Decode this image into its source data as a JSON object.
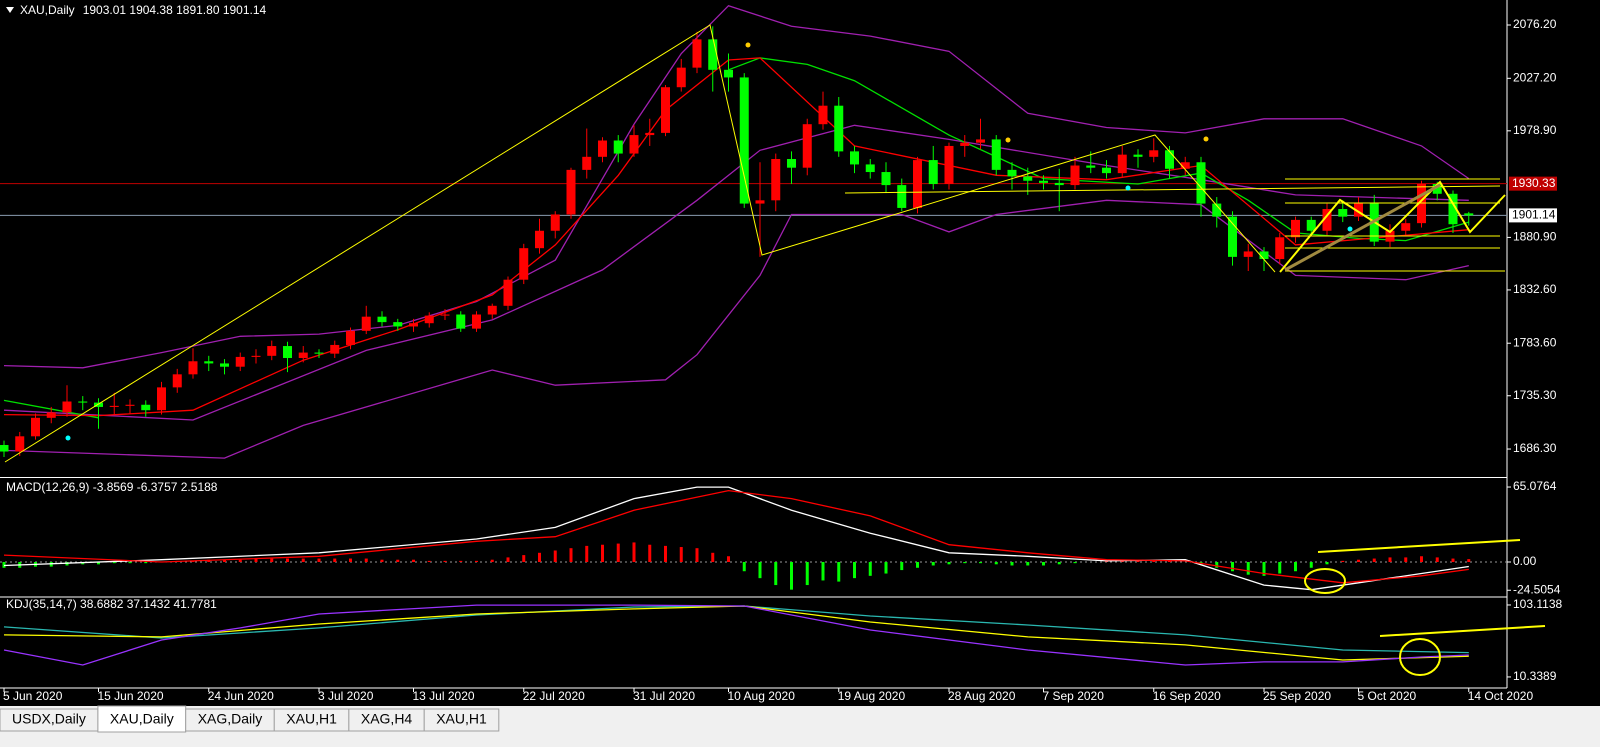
{
  "header": {
    "title": "XAU,Daily",
    "ohlc": "1903.01 1904.38 1891.80 1901.14"
  },
  "chart_data": [
    {
      "type": "candlestick",
      "categories": [
        "5 Jun 2020",
        null,
        null,
        null,
        null,
        null,
        "15 Jun 2020",
        null,
        null,
        null,
        null,
        null,
        null,
        "24 Jun 2020",
        null,
        null,
        null,
        null,
        null,
        null,
        "3 Jul 2020",
        null,
        null,
        null,
        null,
        null,
        "13 Jul 2020",
        null,
        null,
        null,
        null,
        null,
        null,
        "22 Jul 2020",
        null,
        null,
        null,
        null,
        null,
        null,
        "31 Jul 2020",
        null,
        null,
        null,
        null,
        null,
        "10 Aug 2020",
        null,
        null,
        null,
        null,
        null,
        null,
        "19 Aug 2020",
        null,
        null,
        null,
        null,
        null,
        null,
        "28 Aug 2020",
        null,
        null,
        null,
        null,
        null,
        "7 Sep 2020",
        null,
        null,
        null,
        null,
        null,
        null,
        "16 Sep 2020",
        null,
        null,
        null,
        null,
        null,
        null,
        "25 Sep 2020",
        null,
        null,
        null,
        null,
        null,
        "5 Oct 2020",
        null,
        null,
        null,
        null,
        null,
        null,
        "14 Oct 2020"
      ],
      "candles": [
        [
          1690,
          1694,
          1679,
          1684
        ],
        [
          1684,
          1702,
          1680,
          1698
        ],
        [
          1698,
          1719,
          1695,
          1715
        ],
        [
          1715,
          1725,
          1710,
          1720
        ],
        [
          1720,
          1745,
          1716,
          1730
        ],
        [
          1730,
          1735,
          1722,
          1729
        ],
        [
          1729,
          1733,
          1705,
          1725
        ],
        [
          1725,
          1738,
          1718,
          1726
        ],
        [
          1726,
          1732,
          1719,
          1727
        ],
        [
          1727,
          1731,
          1716,
          1722
        ],
        [
          1722,
          1748,
          1718,
          1743
        ],
        [
          1743,
          1760,
          1738,
          1755
        ],
        [
          1755,
          1779,
          1751,
          1767
        ],
        [
          1767,
          1772,
          1758,
          1765
        ],
        [
          1765,
          1769,
          1755,
          1762
        ],
        [
          1762,
          1775,
          1758,
          1771
        ],
        [
          1771,
          1778,
          1765,
          1772
        ],
        [
          1772,
          1786,
          1768,
          1781
        ],
        [
          1781,
          1785,
          1757,
          1770
        ],
        [
          1770,
          1781,
          1766,
          1775
        ],
        [
          1775,
          1778,
          1770,
          1774
        ],
        [
          1774,
          1786,
          1770,
          1782
        ],
        [
          1782,
          1798,
          1778,
          1795
        ],
        [
          1795,
          1818,
          1792,
          1808
        ],
        [
          1808,
          1813,
          1799,
          1803
        ],
        [
          1803,
          1806,
          1795,
          1799
        ],
        [
          1799,
          1806,
          1794,
          1802
        ],
        [
          1802,
          1812,
          1798,
          1809
        ],
        [
          1809,
          1815,
          1805,
          1810
        ],
        [
          1810,
          1813,
          1794,
          1797
        ],
        [
          1797,
          1813,
          1794,
          1810
        ],
        [
          1810,
          1820,
          1806,
          1818
        ],
        [
          1818,
          1845,
          1814,
          1842
        ],
        [
          1842,
          1875,
          1838,
          1871
        ],
        [
          1871,
          1898,
          1866,
          1887
        ],
        [
          1887,
          1905,
          1880,
          1902
        ],
        [
          1902,
          1945,
          1898,
          1943
        ],
        [
          1943,
          1981,
          1935,
          1955
        ],
        [
          1955,
          1973,
          1950,
          1970
        ],
        [
          1970,
          1975,
          1950,
          1958
        ],
        [
          1958,
          1984,
          1955,
          1975
        ],
        [
          1975,
          1990,
          1965,
          1977
        ],
        [
          1977,
          2021,
          1974,
          2019
        ],
        [
          2019,
          2045,
          2015,
          2037
        ],
        [
          2037,
          2070,
          2032,
          2063
        ],
        [
          2063,
          2075,
          2015,
          2035
        ],
        [
          2035,
          2050,
          2015,
          2028
        ],
        [
          2028,
          2032,
          1908,
          1912
        ],
        [
          1912,
          1950,
          1863,
          1915
        ],
        [
          1915,
          1958,
          1905,
          1953
        ],
        [
          1953,
          1960,
          1930,
          1945
        ],
        [
          1945,
          1990,
          1938,
          1985
        ],
        [
          1985,
          2015,
          1980,
          2002
        ],
        [
          2002,
          2010,
          1955,
          1960
        ],
        [
          1960,
          1965,
          1940,
          1948
        ],
        [
          1948,
          1953,
          1935,
          1941
        ],
        [
          1941,
          1950,
          1922,
          1929
        ],
        [
          1929,
          1935,
          1905,
          1908
        ],
        [
          1908,
          1955,
          1903,
          1952
        ],
        [
          1952,
          1965,
          1925,
          1930
        ],
        [
          1930,
          1968,
          1925,
          1965
        ],
        [
          1965,
          1975,
          1955,
          1968
        ],
        [
          1968,
          1990,
          1962,
          1971
        ],
        [
          1971,
          1975,
          1938,
          1943
        ],
        [
          1943,
          1950,
          1925,
          1937
        ],
        [
          1937,
          1945,
          1920,
          1933
        ],
        [
          1933,
          1938,
          1925,
          1931
        ],
        [
          1931,
          1944,
          1905,
          1929
        ],
        [
          1929,
          1955,
          1925,
          1947
        ],
        [
          1947,
          1960,
          1940,
          1945
        ],
        [
          1945,
          1952,
          1935,
          1940
        ],
        [
          1940,
          1965,
          1936,
          1957
        ],
        [
          1957,
          1962,
          1945,
          1955
        ],
        [
          1955,
          1972,
          1950,
          1961
        ],
        [
          1961,
          1965,
          1935,
          1944
        ],
        [
          1944,
          1955,
          1938,
          1950
        ],
        [
          1950,
          1955,
          1900,
          1912
        ],
        [
          1912,
          1918,
          1890,
          1900
        ],
        [
          1900,
          1905,
          1855,
          1863
        ],
        [
          1863,
          1875,
          1850,
          1868
        ],
        [
          1868,
          1872,
          1850,
          1861
        ],
        [
          1861,
          1885,
          1856,
          1881
        ],
        [
          1881,
          1900,
          1876,
          1897
        ],
        [
          1897,
          1900,
          1882,
          1887
        ],
        [
          1887,
          1912,
          1883,
          1907
        ],
        [
          1907,
          1915,
          1895,
          1900
        ],
        [
          1900,
          1918,
          1896,
          1913
        ],
        [
          1913,
          1920,
          1873,
          1877
        ],
        [
          1877,
          1893,
          1872,
          1887
        ],
        [
          1887,
          1898,
          1883,
          1894
        ],
        [
          1894,
          1933,
          1890,
          1930
        ],
        [
          1930,
          1932,
          1915,
          1921
        ],
        [
          1921,
          1924,
          1885,
          1893
        ],
        [
          1903.01,
          1904.38,
          1891.8,
          1901.14
        ]
      ],
      "up_color": "#ff0000",
      "down_color": "#00ff00",
      "ylim": [
        1661.5,
        2099.2
      ],
      "yticks": [
        {
          "value": 2076.2,
          "label": "2076.20"
        },
        {
          "value": 2027.2,
          "label": "2027.20"
        },
        {
          "value": 1978.9,
          "label": "1978.90"
        },
        {
          "value": 1880.9,
          "label": "1880.90"
        },
        {
          "value": 1832.6,
          "label": "1832.60"
        },
        {
          "value": 1783.6,
          "label": "1783.60"
        },
        {
          "value": 1735.3,
          "label": "1735.30"
        },
        {
          "value": 1686.3,
          "label": "1686.30"
        }
      ],
      "price_lines": [
        {
          "value": 1930.33,
          "label": "1930.33",
          "color": "#c00000"
        },
        {
          "value": 1901.14,
          "label": "1901.14",
          "color": "#8a9bb0"
        }
      ],
      "lines": [
        {
          "color": "#a020b0",
          "x": [
            0,
            5,
            10,
            15,
            20,
            25,
            30,
            35,
            40,
            43,
            46,
            50,
            55,
            60,
            65,
            70,
            75,
            80,
            85,
            90,
            93
          ],
          "values": [
            1763,
            1761,
            1775,
            1790,
            1792,
            1800,
            1822,
            1860,
            1985,
            2050,
            2094,
            2075,
            2066,
            2052,
            1995,
            1982,
            1977,
            1990,
            1990,
            1965,
            1935
          ]
        },
        {
          "color": "#a020b0",
          "x": [
            0,
            14,
            19,
            31,
            35,
            42,
            44,
            48,
            50,
            57,
            60,
            63,
            70,
            76,
            82,
            89,
            93
          ],
          "values": [
            1685,
            1678,
            1708,
            1759,
            1745,
            1750,
            1773,
            1846,
            1902,
            1902,
            1886,
            1902,
            1915,
            1911,
            1846,
            1842,
            1855
          ]
        },
        {
          "color": "#a020b0",
          "x": [
            0,
            12,
            23,
            31,
            38,
            44,
            48,
            54,
            60,
            70,
            76,
            82,
            93
          ],
          "values": [
            1722,
            1713,
            1777,
            1805,
            1851,
            1915,
            1961,
            1984,
            1971,
            1947,
            1934,
            1920,
            1915
          ]
        },
        {
          "color": "#00e000",
          "x": [
            0,
            6,
            20,
            46,
            48,
            51,
            54,
            60,
            66,
            72,
            76,
            79,
            82,
            86,
            89,
            93
          ],
          "values": [
            1731,
            1715,
            null,
            2035,
            2046,
            2040,
            2025,
            1975,
            1935,
            1930,
            1940,
            1915,
            1885,
            1880,
            1878,
            1895
          ]
        },
        {
          "color": "#ff0000",
          "x": [
            0,
            6,
            12,
            19,
            25,
            31,
            35,
            39,
            42,
            46,
            48,
            54,
            63,
            70,
            76,
            82,
            93
          ],
          "values": [
            1718,
            1717,
            1722,
            1768,
            1796,
            1828,
            1874,
            1938,
            1998,
            2044,
            2046,
            1965,
            1938,
            1934,
            1947,
            1874,
            1888
          ]
        }
      ]
    },
    {
      "type": "macd",
      "title": "MACD(12,26,9) -3.8569 -6.3757 2.5188",
      "histogram": [
        -5,
        -5,
        -4,
        -4,
        -3,
        -2,
        -2,
        -1,
        -1,
        -1,
        0,
        1,
        1,
        2,
        2,
        2,
        3,
        3,
        3,
        3,
        3,
        3,
        3,
        3,
        2,
        2,
        2,
        1,
        1,
        1,
        1,
        2,
        4,
        6,
        8,
        10,
        12,
        14,
        15,
        16,
        17,
        15,
        14,
        13,
        12,
        8,
        5,
        -8,
        -14,
        -20,
        -24,
        -20,
        -16,
        -17,
        -14,
        -12,
        -10,
        -7,
        -5,
        -3,
        -2,
        -1,
        -1,
        -2,
        -3,
        -3,
        -3,
        -2,
        -1,
        0,
        1,
        1,
        1,
        1,
        1,
        0,
        -2,
        -5,
        -8,
        -11,
        -12,
        -10,
        -8,
        -5,
        -2,
        1,
        2,
        3,
        4,
        4,
        5,
        4,
        3,
        2.5188
      ],
      "pos_color": "#ff0000",
      "neg_color": "#00ff00",
      "ylim": [
        -29.5,
        72.05
      ],
      "yticks": [
        65.0764,
        {
          "value": 0,
          "label": "0.00"
        },
        -24.5054
      ],
      "lines": [
        {
          "color": "#ffffff",
          "x": [
            0,
            10,
            20,
            30,
            35,
            40,
            44,
            46,
            50,
            55,
            60,
            65,
            70,
            75,
            80,
            83,
            86,
            90,
            93
          ],
          "values": [
            -3,
            2,
            8,
            20,
            30,
            55,
            65,
            65,
            45,
            25,
            8,
            5,
            1,
            2,
            -20,
            -24,
            -18,
            -10,
            -3.8569
          ]
        },
        {
          "color": "#ff0000",
          "x": [
            0,
            10,
            20,
            30,
            35,
            40,
            46,
            50,
            55,
            60,
            65,
            70,
            75,
            80,
            85,
            90,
            93
          ],
          "values": [
            6,
            0,
            5,
            18,
            22,
            45,
            62,
            55,
            40,
            15,
            8,
            2,
            1,
            -10,
            -18,
            -12,
            -6.3757
          ]
        }
      ]
    },
    {
      "type": "lines",
      "title": "KDJ(35,14,7) 38.6882 37.1432 41.7781",
      "ylim": [
        -3.9,
        112.1
      ],
      "yticks": [
        103.1138,
        10.3389
      ],
      "lines": [
        {
          "color": "#2ab7b0",
          "x": [
            0,
            10,
            20,
            30,
            40,
            47,
            55,
            65,
            75,
            85,
            93
          ],
          "values": [
            74.8,
            60.6,
            73.5,
            90.2,
            100.5,
            101.8,
            88.9,
            77.3,
            64.5,
            45.1,
            41.7781
          ]
        },
        {
          "color": "#ffff00",
          "x": [
            0,
            10,
            20,
            30,
            40,
            47,
            55,
            65,
            75,
            85,
            93
          ],
          "values": [
            64.5,
            61.9,
            78.6,
            91.5,
            98,
            101.8,
            81.2,
            61.9,
            51.6,
            32.2,
            37.1432
          ]
        },
        {
          "color": "#9933ff",
          "x": [
            0,
            5,
            10,
            15,
            20,
            30,
            40,
            47,
            55,
            65,
            75,
            80,
            85,
            90,
            93
          ],
          "values": [
            45.1,
            25.8,
            58,
            73.5,
            91.5,
            103,
            103,
            101.8,
            70.9,
            45.1,
            25.8,
            29.7,
            29.7,
            36.1,
            38.6882
          ]
        }
      ]
    }
  ],
  "tabs": [
    "USDX,Daily",
    "XAU,Daily",
    "XAG,Daily",
    "XAU,H1",
    "XAG,H4",
    "XAU,H1"
  ],
  "active_tab": 1
}
